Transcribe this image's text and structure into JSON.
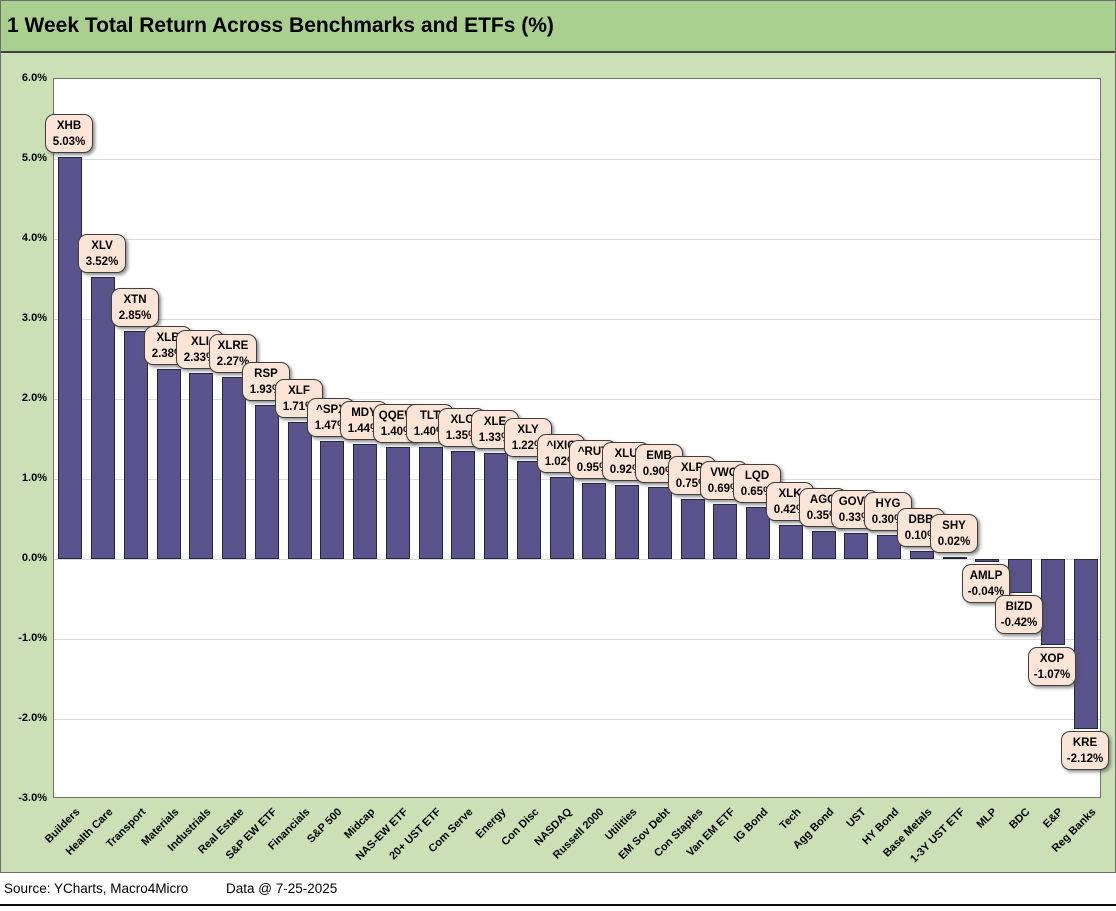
{
  "header": {
    "title": "1 Week Total Return Across Benchmarks and ETFs (%)"
  },
  "footer": {
    "source": "Source: YCharts, Macro4Micro",
    "data_date": "Data @ 7-25-2025"
  },
  "chart_data": {
    "type": "bar",
    "title": "1 Week Total Return Across Benchmarks and ETFs (%)",
    "xlabel": "",
    "ylabel": "",
    "ylim": [
      -3.0,
      6.0
    ],
    "y_tick_step": 1.0,
    "y_tick_labels": [
      "6.0%",
      "5.0%",
      "4.0%",
      "3.0%",
      "2.0%",
      "1.0%",
      "0.0%",
      "-1.0%",
      "-2.0%",
      "-3.0%"
    ],
    "grid": true,
    "legend_position": "none",
    "categories": [
      "Builders",
      "Health Care",
      "Transport",
      "Materials",
      "Industrials",
      "Real Estate",
      "S&P EW ETF",
      "Financials",
      "S&P 500",
      "Midcap",
      "NAS-EW ETF",
      "20+ UST ETF",
      "Com Serve",
      "Energy",
      "Con Disc",
      "NASDAQ",
      "Russell 2000",
      "Utilities",
      "EM Sov Debt",
      "Con Staples",
      "Van EM ETF",
      "IG Bond",
      "Tech",
      "Agg Bond",
      "UST",
      "HY Bond",
      "Base Metals",
      "1-3Y UST ETF",
      "MLP",
      "BDC",
      "E&P",
      "Reg Banks"
    ],
    "tickers": [
      "XHB",
      "XLV",
      "XTN",
      "XLB",
      "XLI",
      "XLRE",
      "RSP",
      "XLF",
      "^SPX",
      "MDY",
      "QQEW",
      "TLT",
      "XLC",
      "XLE",
      "XLY",
      "^IXIC",
      "^RUT",
      "XLU",
      "EMB",
      "XLP",
      "VWO",
      "LQD",
      "XLK",
      "AGG",
      "GOVT",
      "HYG",
      "DBB",
      "SHY",
      "AMLP",
      "BIZD",
      "XOP",
      "KRE"
    ],
    "values": [
      5.03,
      3.52,
      2.85,
      2.38,
      2.33,
      2.27,
      1.93,
      1.71,
      1.47,
      1.44,
      1.4,
      1.4,
      1.35,
      1.33,
      1.22,
      1.02,
      0.95,
      0.92,
      0.9,
      0.75,
      0.69,
      0.65,
      0.42,
      0.35,
      0.33,
      0.3,
      0.1,
      0.02,
      -0.04,
      -0.42,
      -1.07,
      -2.12
    ],
    "value_suffix": "%",
    "colors": {
      "bar_fill": "#5B538B",
      "bar_border": "#26263B",
      "callout_fill": "#FCE4D6",
      "callout_border": "#3F3F3F",
      "title_band": "#A9D08E",
      "sheet_background": "#CBE0B4",
      "plot_background": "#FFFFFF",
      "gridline": "#D9D9D9"
    }
  }
}
